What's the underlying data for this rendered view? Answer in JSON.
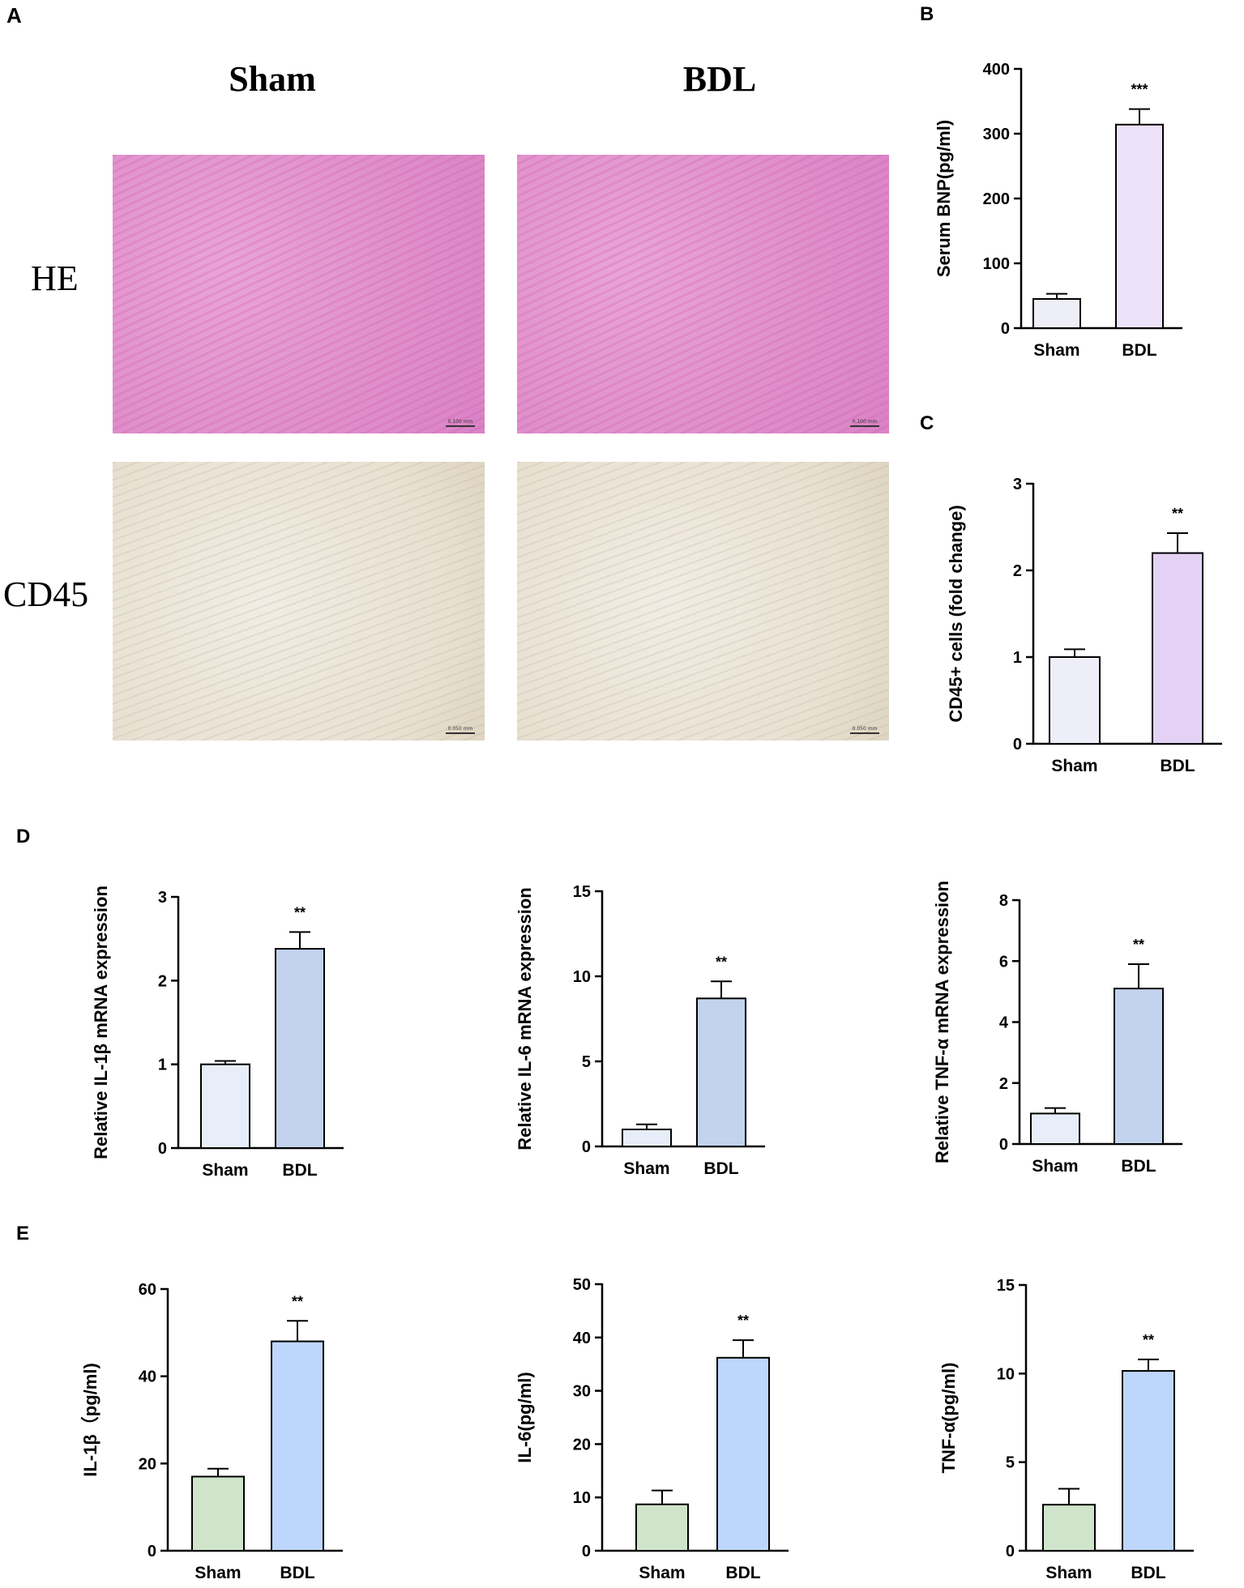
{
  "panel_A": {
    "letter": "A",
    "col_sham": "Sham",
    "col_bdl": "BDL",
    "row_he": "HE",
    "row_cd45": "CD45",
    "scale_label_he": "0.100 mm",
    "scale_label_cd45": "0.050 mm"
  },
  "colors": {
    "sham_light": "#eeeef8",
    "bdl_lilac": "#eee2f8",
    "bdl_violet": "#e4d2f5",
    "sham_blue_pale": "#e7eef9",
    "bdl_blue_steel": "#c3d2ee",
    "sham_green": "#cfe4cb",
    "bdl_sky": "#bdd6fb"
  },
  "chart_data": [
    {
      "id": "B",
      "letter": "B",
      "type": "bar",
      "categories": [
        "Sham",
        "BDL"
      ],
      "values": [
        45,
        314
      ],
      "errors": [
        8,
        24
      ],
      "ylabel": "Serum BNP(pg/ml)",
      "ylim": [
        0,
        400
      ],
      "yticks": [
        0,
        100,
        200,
        300,
        400
      ],
      "ytick_labels": [
        "0",
        "100",
        "200",
        "300",
        "400"
      ],
      "significance": "***",
      "colors": [
        "#eeeef8",
        "#eee2f8"
      ]
    },
    {
      "id": "C",
      "letter": "C",
      "type": "bar",
      "categories": [
        "Sham",
        "BDL"
      ],
      "values": [
        1.0,
        2.2
      ],
      "errors": [
        0.09,
        0.23
      ],
      "ylabel": "CD45+ cells (fold change)",
      "ylim": [
        0,
        3
      ],
      "yticks": [
        0,
        1,
        2,
        3
      ],
      "ytick_labels": [
        "0",
        "1",
        "2",
        "3"
      ],
      "significance": "**",
      "colors": [
        "#eeeef8",
        "#e4d2f5"
      ]
    },
    {
      "id": "D1",
      "letter": "D",
      "type": "bar",
      "categories": [
        "Sham",
        "BDL"
      ],
      "values": [
        1.0,
        2.38
      ],
      "errors": [
        0.04,
        0.2
      ],
      "ylabel": "Relative IL-1β mRNA expression",
      "ylim": [
        0,
        3
      ],
      "yticks": [
        0,
        1,
        2,
        3
      ],
      "ytick_labels": [
        "0",
        "1",
        "2",
        "3"
      ],
      "significance": "**",
      "colors": [
        "#e7eef9",
        "#c3d2ee"
      ]
    },
    {
      "id": "D2",
      "letter": "",
      "type": "bar",
      "categories": [
        "Sham",
        "BDL"
      ],
      "values": [
        1.0,
        8.7
      ],
      "errors": [
        0.3,
        1.0
      ],
      "ylabel": "Relative IL-6 mRNA expression",
      "ylim": [
        0,
        15
      ],
      "yticks": [
        0,
        5,
        10,
        15
      ],
      "ytick_labels": [
        "0",
        "5",
        "10",
        "15"
      ],
      "significance": "**",
      "colors": [
        "#e7eef9",
        "#c3d2ee"
      ]
    },
    {
      "id": "D3",
      "letter": "",
      "type": "bar",
      "categories": [
        "Sham",
        "BDL"
      ],
      "values": [
        1.0,
        5.1
      ],
      "errors": [
        0.18,
        0.8
      ],
      "ylabel": "Relative TNF-α mRNA expression",
      "ylim": [
        0,
        8
      ],
      "yticks": [
        0,
        2,
        4,
        6,
        8
      ],
      "ytick_labels": [
        "0",
        "2",
        "4",
        "6",
        "8"
      ],
      "significance": "**",
      "colors": [
        "#e7eef9",
        "#c3d2ee"
      ]
    },
    {
      "id": "E1",
      "letter": "E",
      "type": "bar",
      "categories": [
        "Sham",
        "BDL"
      ],
      "values": [
        17,
        48
      ],
      "errors": [
        1.8,
        4.7
      ],
      "ylabel": "IL-1β（pg/ml)",
      "ylim": [
        0,
        60
      ],
      "yticks": [
        0,
        20,
        40,
        60
      ],
      "ytick_labels": [
        "0",
        "20",
        "40",
        "60"
      ],
      "significance": "**",
      "colors": [
        "#cfe4cb",
        "#bdd6fb"
      ]
    },
    {
      "id": "E2",
      "letter": "",
      "type": "bar",
      "categories": [
        "Sham",
        "BDL"
      ],
      "values": [
        8.7,
        36.2
      ],
      "errors": [
        2.6,
        3.3
      ],
      "ylabel": "IL-6(pg/ml)",
      "ylim": [
        0,
        50
      ],
      "yticks": [
        0,
        10,
        20,
        30,
        40,
        50
      ],
      "ytick_labels": [
        "0",
        "10",
        "20",
        "30",
        "40",
        "50"
      ],
      "significance": "**",
      "colors": [
        "#cfe4cb",
        "#bdd6fb"
      ]
    },
    {
      "id": "E3",
      "letter": "",
      "type": "bar",
      "categories": [
        "Sham",
        "BDL"
      ],
      "values": [
        2.6,
        10.15
      ],
      "errors": [
        0.9,
        0.65
      ],
      "ylabel": "TNF-α(pg/ml)",
      "ylim": [
        0,
        15
      ],
      "yticks": [
        0,
        5,
        10,
        15
      ],
      "ytick_labels": [
        "0",
        "5",
        "10",
        "15"
      ],
      "significance": "**",
      "colors": [
        "#cfe4cb",
        "#bdd6fb"
      ]
    }
  ]
}
